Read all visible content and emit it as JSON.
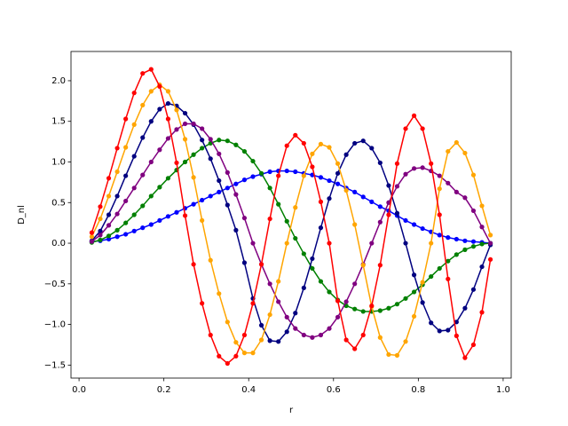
{
  "chart_data": {
    "type": "line",
    "xlabel": "r",
    "ylabel": "D_nl",
    "x": [
      0.03,
      0.05,
      0.07,
      0.09,
      0.11,
      0.13,
      0.15,
      0.17,
      0.19,
      0.21,
      0.23,
      0.25,
      0.27,
      0.29,
      0.31,
      0.33,
      0.35,
      0.37,
      0.39,
      0.41,
      0.43,
      0.45,
      0.47,
      0.49,
      0.51,
      0.53,
      0.55,
      0.57,
      0.59,
      0.61,
      0.63,
      0.65,
      0.67,
      0.69,
      0.71,
      0.73,
      0.75,
      0.77,
      0.79,
      0.81,
      0.83,
      0.85,
      0.87,
      0.89,
      0.91,
      0.93,
      0.95,
      0.97
    ],
    "series": [
      {
        "color": "#0000ff",
        "values": [
          0.02,
          0.03,
          0.05,
          0.08,
          0.11,
          0.15,
          0.19,
          0.23,
          0.28,
          0.33,
          0.38,
          0.43,
          0.48,
          0.53,
          0.58,
          0.63,
          0.68,
          0.73,
          0.78,
          0.82,
          0.85,
          0.88,
          0.89,
          0.89,
          0.88,
          0.86,
          0.84,
          0.81,
          0.77,
          0.73,
          0.68,
          0.63,
          0.57,
          0.51,
          0.45,
          0.4,
          0.34,
          0.28,
          0.23,
          0.18,
          0.14,
          0.1,
          0.07,
          0.05,
          0.03,
          0.02,
          0.01,
          0.0
        ]
      },
      {
        "color": "#008000",
        "values": [
          0.01,
          0.04,
          0.09,
          0.16,
          0.25,
          0.35,
          0.46,
          0.58,
          0.69,
          0.8,
          0.9,
          1.0,
          1.09,
          1.17,
          1.23,
          1.27,
          1.26,
          1.21,
          1.13,
          1.01,
          0.86,
          0.68,
          0.48,
          0.27,
          0.06,
          -0.13,
          -0.31,
          -0.47,
          -0.6,
          -0.7,
          -0.77,
          -0.81,
          -0.84,
          -0.84,
          -0.83,
          -0.8,
          -0.75,
          -0.68,
          -0.6,
          -0.51,
          -0.41,
          -0.31,
          -0.22,
          -0.14,
          -0.08,
          -0.04,
          -0.01,
          0.0
        ]
      },
      {
        "color": "#000080",
        "values": [
          0.03,
          0.15,
          0.35,
          0.58,
          0.83,
          1.07,
          1.3,
          1.5,
          1.65,
          1.72,
          1.69,
          1.6,
          1.46,
          1.27,
          1.04,
          0.77,
          0.47,
          0.16,
          -0.24,
          -0.68,
          -1.01,
          -1.2,
          -1.21,
          -1.09,
          -0.86,
          -0.55,
          -0.19,
          0.19,
          0.55,
          0.86,
          1.09,
          1.23,
          1.26,
          1.17,
          0.99,
          0.71,
          0.37,
          0.0,
          -0.39,
          -0.73,
          -0.98,
          -1.08,
          -1.07,
          -0.97,
          -0.8,
          -0.57,
          -0.29,
          -0.02
        ]
      },
      {
        "color": "#800080",
        "values": [
          0.02,
          0.1,
          0.22,
          0.36,
          0.52,
          0.68,
          0.84,
          1.0,
          1.15,
          1.29,
          1.4,
          1.47,
          1.47,
          1.41,
          1.28,
          1.1,
          0.87,
          0.6,
          0.31,
          0.0,
          -0.26,
          -0.5,
          -0.72,
          -0.91,
          -1.05,
          -1.13,
          -1.16,
          -1.13,
          -1.05,
          -0.91,
          -0.72,
          -0.5,
          -0.26,
          0.0,
          0.26,
          0.5,
          0.7,
          0.85,
          0.92,
          0.93,
          0.89,
          0.83,
          0.74,
          0.63,
          0.56,
          0.4,
          0.2,
          0.0
        ]
      },
      {
        "color": "#ffa500",
        "values": [
          0.08,
          0.3,
          0.58,
          0.88,
          1.18,
          1.46,
          1.7,
          1.87,
          1.95,
          1.87,
          1.64,
          1.28,
          0.81,
          0.28,
          -0.21,
          -0.62,
          -0.97,
          -1.22,
          -1.35,
          -1.35,
          -1.19,
          -0.88,
          -0.47,
          0.0,
          0.44,
          0.83,
          1.1,
          1.22,
          1.18,
          0.98,
          0.65,
          0.23,
          -0.27,
          -0.78,
          -1.16,
          -1.37,
          -1.38,
          -1.21,
          -0.9,
          -0.48,
          0.0,
          0.67,
          1.13,
          1.24,
          1.11,
          0.84,
          0.46,
          0.1
        ]
      },
      {
        "color": "#ff0000",
        "values": [
          0.13,
          0.45,
          0.8,
          1.17,
          1.53,
          1.85,
          2.09,
          2.14,
          1.93,
          1.53,
          0.99,
          0.34,
          -0.26,
          -0.74,
          -1.13,
          -1.39,
          -1.48,
          -1.39,
          -1.13,
          -0.74,
          -0.26,
          0.3,
          0.83,
          1.2,
          1.33,
          1.23,
          0.94,
          0.51,
          0.0,
          -0.71,
          -1.19,
          -1.3,
          -1.13,
          -0.77,
          -0.27,
          0.35,
          0.98,
          1.41,
          1.57,
          1.41,
          0.98,
          0.35,
          -0.44,
          -1.14,
          -1.41,
          -1.25,
          -0.85,
          -0.2
        ]
      }
    ],
    "xlim": [
      -0.019,
      1.019
    ],
    "xticks": [
      {
        "value": 0,
        "label": "0.0"
      },
      0.2,
      0.4,
      0.6,
      0.8,
      {
        "value": 1,
        "label": "1.0"
      }
    ],
    "ylim": [
      -1.66,
      2.36
    ],
    "yticks": [
      {
        "value": -1.5,
        "label": "−1.5"
      },
      {
        "value": -1,
        "label": "−1.0"
      },
      {
        "value": -0.5,
        "label": "−0.5"
      },
      {
        "value": 0,
        "label": "0.0"
      },
      0.5,
      {
        "value": 1,
        "label": "1.0"
      },
      1.5,
      {
        "value": 2,
        "label": "2.0"
      }
    ],
    "grid": false
  }
}
